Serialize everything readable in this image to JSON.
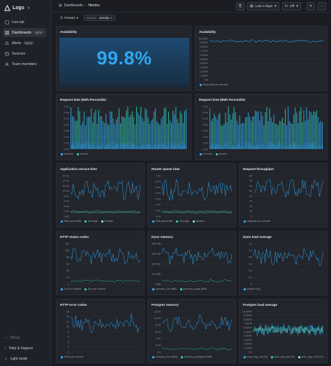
{
  "app": {
    "name": "Logs"
  },
  "sidebar": {
    "items": [
      {
        "label": "Live tail",
        "badge": ""
      },
      {
        "label": "Dashboards",
        "badge": "BETA"
      },
      {
        "label": "Alerts",
        "badge": "BETA"
      },
      {
        "label": "Sources",
        "badge": ""
      },
      {
        "label": "Team members",
        "badge": ""
      }
    ],
    "footer": {
      "billing": "Billing",
      "help": "Help & Support",
      "theme": "Light mode"
    }
  },
  "header": {
    "breadcrumb": [
      "Dashboards",
      "Heroku"
    ],
    "time_range": "Last 3 days",
    "refresh": "Off"
  },
  "filters": {
    "presets_label": "Presets",
    "source_key": "source",
    "source_value": "Heroku"
  },
  "colors": {
    "accent": "#2fa7f0",
    "teal": "#2ec4b0",
    "bg": "#1a1c22",
    "card": "#22252c"
  },
  "panels": {
    "availability_big": {
      "title": "Availability",
      "value": "99.8%"
    },
    "availability_chart": {
      "title": "Availability",
      "chart_data": {
        "type": "line",
        "yticks": [
          "10,000%",
          "9,000%",
          "8,000%",
          "7,000%",
          "6,000%",
          "5,000%",
          "4,000%",
          "3,000%",
          "2,000%",
          "1,000%",
          "0%"
        ],
        "series": [
          {
            "name": "Requests per second",
            "values": [
              9700,
              9600,
              9700,
              9600,
              9650,
              9700,
              9550,
              9700,
              9600,
              9650,
              9700,
              9600,
              9700,
              9650,
              9600,
              9700,
              9650,
              9600,
              9700,
              9650,
              9600,
              9700,
              9650,
              9600,
              9700,
              9650,
              9600,
              9700,
              9650,
              9600,
              9700,
              9650,
              9600,
              9700,
              9650,
              9600,
              9700,
              9650,
              9600,
              9700
            ]
          }
        ]
      }
    },
    "request_time_1": {
      "title": "Request time (95th Percentile)",
      "chart_data": {
        "type": "bar",
        "yticks": [
          "7 ms",
          "6 ms",
          "5 ms",
          "4 ms",
          "3 ms",
          "2 ms",
          "1 ms",
          "0 ms"
        ],
        "series": [
          {
            "name": "connect"
          },
          {
            "name": "service"
          }
        ]
      }
    },
    "request_time_2": {
      "title": "Request time (95th Percentile)",
      "chart_data": {
        "type": "bar",
        "yticks": [
          "7 ms",
          "6 ms",
          "5 ms",
          "4 ms",
          "3 ms",
          "2 ms",
          "1 ms",
          "0 ms"
        ],
        "series": [
          {
            "name": "connect"
          },
          {
            "name": "service"
          }
        ]
      }
    },
    "app_service_time": {
      "title": "Application service time",
      "chart_data": {
        "type": "line",
        "yticks": [
          "16 ms",
          "14 ms",
          "12 ms",
          "10 ms",
          "8 ms",
          "6 ms",
          "4 ms",
          "2 ms",
          "0 ms"
        ],
        "series": [
          {
            "name": "95th percentile"
          },
          {
            "name": "Average"
          },
          {
            "name": "Median"
          }
        ]
      }
    },
    "router_queue_time": {
      "title": "Router queue time",
      "chart_data": {
        "type": "line",
        "yticks": [
          "7 ms",
          "6 ms",
          "5 ms",
          "4 ms",
          "3 ms",
          "2 ms",
          "1 ms",
          "0 ms"
        ],
        "series": [
          {
            "name": "95th percentile"
          },
          {
            "name": "Average"
          },
          {
            "name": "Median"
          }
        ]
      }
    },
    "request_throughput": {
      "title": "Request throughput",
      "chart_data": {
        "type": "line",
        "yticks": [
          "80",
          "70",
          "60",
          "50",
          "40",
          "30",
          "20",
          "10",
          "0"
        ],
        "series": [
          {
            "name": "requests per minute"
          }
        ]
      }
    },
    "http_status": {
      "title": "HTTP status codes",
      "chart_data": {
        "type": "line",
        "yticks": [
          "120",
          "100",
          "80",
          "60",
          "40",
          "20",
          "0"
        ],
        "series": [
          {
            "name": "2xx per minute"
          },
          {
            "name": "3xx per minute"
          }
        ]
      }
    },
    "dyno_memory": {
      "title": "Dyno memory",
      "chart_data": {
        "type": "line",
        "yticks": [
          "400 MB",
          "300 MB",
          "200 MB",
          "100 MB",
          "0 MB"
        ],
        "series": [
          {
            "name": "memory_rss (MB)"
          },
          {
            "name": "memory_swap (MB)"
          }
        ]
      }
    },
    "dyno_load": {
      "title": "Dyno load average",
      "chart_data": {
        "type": "line",
        "yticks": [
          "1.2",
          "1.0",
          "0.8",
          "0.6",
          "0.4",
          "0.2",
          "0"
        ],
        "series": [
          {
            "name": "load1m [%]"
          }
        ]
      }
    },
    "http_errors": {
      "title": "HTTP error codes",
      "chart_data": {
        "type": "line",
        "yticks": [
          "16",
          "14",
          "12",
          "10",
          "8",
          "6",
          "4",
          "2",
          "0"
        ],
        "series": [
          {
            "name": "5XXs per minute"
          }
        ]
      }
    },
    "postgres_memory": {
      "title": "Postgres memory",
      "chart_data": {
        "type": "line",
        "yticks": [
          "120 B",
          "100 B",
          "80 B",
          "60 B",
          "40 B",
          "20 B",
          "0 B"
        ],
        "series": [
          {
            "name": "memory_free (MB)"
          },
          {
            "name": "memory_postgres (MB)"
          }
        ]
      }
    },
    "postgres_load": {
      "title": "Postgres load average",
      "chart_data": {
        "type": "line",
        "yticks": [
          "10,000%",
          "9,000%",
          "8,000%",
          "7,000%",
          "6,000%",
          "5,000%",
          "4,000%",
          "3,000%",
          "2,000%",
          "1,000%",
          "0%"
        ],
        "series": [
          {
            "name": "load_avg_1m [%]"
          },
          {
            "name": "load_avg_5m [%]"
          },
          {
            "name": "load_avg_15m [%]"
          }
        ]
      }
    }
  }
}
